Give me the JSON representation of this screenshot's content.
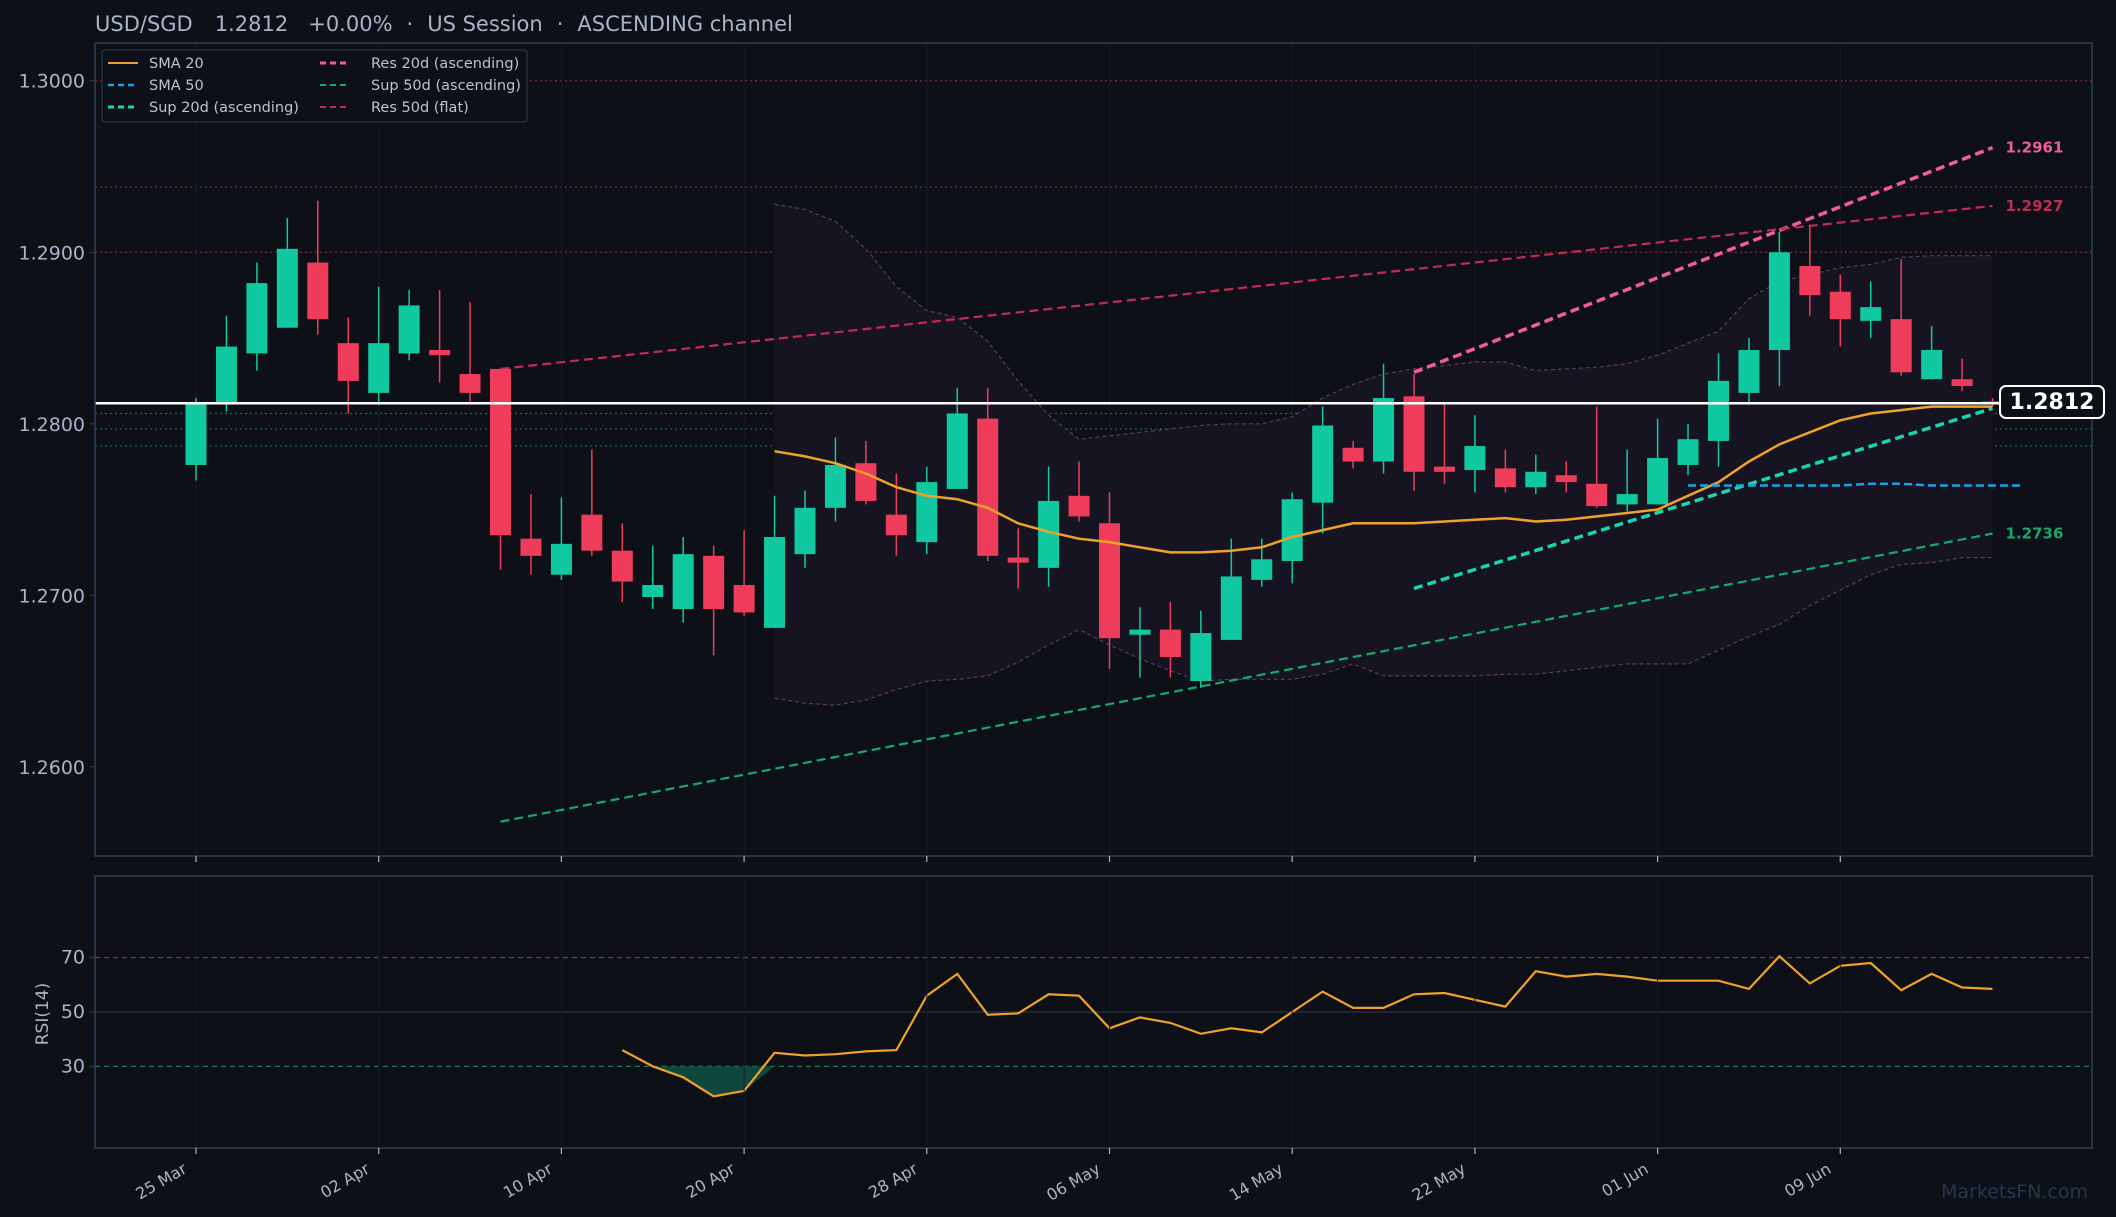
{
  "header": {
    "symbol": "USD/SGD",
    "price": "1.2812",
    "change": "+0.00%",
    "session": "US Session",
    "channel": "ASCENDING channel",
    "separator": "·"
  },
  "watermark": "MarketsFN.com",
  "colors": {
    "background": "#0d1017",
    "panel_border": "#2b4157",
    "up": "#11c9a0",
    "down": "#ee3c5a",
    "sma20": "#f0a12c",
    "sma50": "#1aa3e8",
    "sup20": "#19d6aa",
    "res20": "#ef5d9b",
    "sup50": "#17a96b",
    "res50": "#c42a52",
    "bollinger": "#5b3a5f",
    "rsi": "#f0a12c"
  },
  "chart_data": [
    {
      "type": "candlestick",
      "title": "USD/SGD",
      "x_tick_labels": [
        "25 Mar",
        "02 Apr",
        "10 Apr",
        "20 Apr",
        "28 Apr",
        "06 May",
        "14 May",
        "22 May",
        "01 Jun",
        "09 Jun"
      ],
      "y_ticks": [
        "1.2600",
        "1.2700",
        "1.2800",
        "1.2900",
        "1.3000"
      ],
      "ylim": [
        1.2548,
        1.3022
      ],
      "current_price_label": "1.2812",
      "current_price": 1.2812,
      "grid": true,
      "legend_position": "top-left",
      "legend": [
        "SMA 20",
        "SMA 50",
        "Sup 20d (ascending)",
        "Res 20d (ascending)",
        "Sup 50d (ascending)",
        "Res 50d (flat)"
      ],
      "candles": [
        {
          "o": 1.2776,
          "h": 1.2815,
          "l": 1.2767,
          "c": 1.2812
        },
        {
          "o": 1.2812,
          "h": 1.2863,
          "l": 1.2807,
          "c": 1.2845
        },
        {
          "o": 1.2841,
          "h": 1.2894,
          "l": 1.2831,
          "c": 1.2882
        },
        {
          "o": 1.2856,
          "h": 1.292,
          "l": 1.2856,
          "c": 1.2902
        },
        {
          "o": 1.2894,
          "h": 1.293,
          "l": 1.2852,
          "c": 1.2861
        },
        {
          "o": 1.2847,
          "h": 1.2862,
          "l": 1.2806,
          "c": 1.2825
        },
        {
          "o": 1.2818,
          "h": 1.288,
          "l": 1.2811,
          "c": 1.2847
        },
        {
          "o": 1.2841,
          "h": 1.2878,
          "l": 1.2837,
          "c": 1.2869
        },
        {
          "o": 1.2843,
          "h": 1.2878,
          "l": 1.2824,
          "c": 1.284
        },
        {
          "o": 1.2829,
          "h": 1.2871,
          "l": 1.2813,
          "c": 1.2818
        },
        {
          "o": 1.2832,
          "h": 1.2832,
          "l": 1.2715,
          "c": 1.2735
        },
        {
          "o": 1.2733,
          "h": 1.2759,
          "l": 1.2712,
          "c": 1.2723
        },
        {
          "o": 1.2712,
          "h": 1.2757,
          "l": 1.2709,
          "c": 1.273
        },
        {
          "o": 1.2747,
          "h": 1.2785,
          "l": 1.2723,
          "c": 1.2726
        },
        {
          "o": 1.2726,
          "h": 1.2742,
          "l": 1.2696,
          "c": 1.2708
        },
        {
          "o": 1.2699,
          "h": 1.2729,
          "l": 1.2692,
          "c": 1.2706
        },
        {
          "o": 1.2692,
          "h": 1.2734,
          "l": 1.2684,
          "c": 1.2724
        },
        {
          "o": 1.2723,
          "h": 1.2729,
          "l": 1.2665,
          "c": 1.2692
        },
        {
          "o": 1.2706,
          "h": 1.2738,
          "l": 1.2688,
          "c": 1.269
        },
        {
          "o": 1.2681,
          "h": 1.2758,
          "l": 1.2681,
          "c": 1.2734
        },
        {
          "o": 1.2724,
          "h": 1.2761,
          "l": 1.2716,
          "c": 1.2751
        },
        {
          "o": 1.2751,
          "h": 1.2792,
          "l": 1.2743,
          "c": 1.2776
        },
        {
          "o": 1.2777,
          "h": 1.279,
          "l": 1.2753,
          "c": 1.2755
        },
        {
          "o": 1.2747,
          "h": 1.2771,
          "l": 1.2723,
          "c": 1.2735
        },
        {
          "o": 1.2731,
          "h": 1.2775,
          "l": 1.2724,
          "c": 1.2766
        },
        {
          "o": 1.2762,
          "h": 1.2821,
          "l": 1.2762,
          "c": 1.2806
        },
        {
          "o": 1.2803,
          "h": 1.2821,
          "l": 1.272,
          "c": 1.2723
        },
        {
          "o": 1.2722,
          "h": 1.2739,
          "l": 1.2704,
          "c": 1.2719
        },
        {
          "o": 1.2716,
          "h": 1.2775,
          "l": 1.2705,
          "c": 1.2755
        },
        {
          "o": 1.2758,
          "h": 1.2778,
          "l": 1.2743,
          "c": 1.2746
        },
        {
          "o": 1.2742,
          "h": 1.276,
          "l": 1.2657,
          "c": 1.2675
        },
        {
          "o": 1.2677,
          "h": 1.2693,
          "l": 1.2652,
          "c": 1.268
        },
        {
          "o": 1.268,
          "h": 1.2696,
          "l": 1.2652,
          "c": 1.2664
        },
        {
          "o": 1.265,
          "h": 1.2691,
          "l": 1.2646,
          "c": 1.2678
        },
        {
          "o": 1.2674,
          "h": 1.2733,
          "l": 1.2674,
          "c": 1.2711
        },
        {
          "o": 1.2709,
          "h": 1.2733,
          "l": 1.2705,
          "c": 1.2721
        },
        {
          "o": 1.272,
          "h": 1.276,
          "l": 1.2707,
          "c": 1.2756
        },
        {
          "o": 1.2754,
          "h": 1.281,
          "l": 1.2736,
          "c": 1.2799
        },
        {
          "o": 1.2786,
          "h": 1.279,
          "l": 1.2774,
          "c": 1.2778
        },
        {
          "o": 1.2778,
          "h": 1.2835,
          "l": 1.2771,
          "c": 1.2815
        },
        {
          "o": 1.2816,
          "h": 1.2829,
          "l": 1.2761,
          "c": 1.2772
        },
        {
          "o": 1.2775,
          "h": 1.2812,
          "l": 1.2765,
          "c": 1.2772
        },
        {
          "o": 1.2773,
          "h": 1.2805,
          "l": 1.276,
          "c": 1.2787
        },
        {
          "o": 1.2774,
          "h": 1.2785,
          "l": 1.276,
          "c": 1.2763
        },
        {
          "o": 1.2763,
          "h": 1.2782,
          "l": 1.2759,
          "c": 1.2772
        },
        {
          "o": 1.277,
          "h": 1.2778,
          "l": 1.276,
          "c": 1.2766
        },
        {
          "o": 1.2765,
          "h": 1.281,
          "l": 1.2751,
          "c": 1.2752
        },
        {
          "o": 1.2753,
          "h": 1.2785,
          "l": 1.2749,
          "c": 1.2759
        },
        {
          "o": 1.2753,
          "h": 1.2803,
          "l": 1.2753,
          "c": 1.278
        },
        {
          "o": 1.2776,
          "h": 1.28,
          "l": 1.277,
          "c": 1.2791
        },
        {
          "o": 1.279,
          "h": 1.2841,
          "l": 1.2775,
          "c": 1.2825
        },
        {
          "o": 1.2818,
          "h": 1.285,
          "l": 1.2812,
          "c": 1.2843
        },
        {
          "o": 1.2843,
          "h": 1.2912,
          "l": 1.2822,
          "c": 1.29
        },
        {
          "o": 1.2892,
          "h": 1.2916,
          "l": 1.2863,
          "c": 1.2875
        },
        {
          "o": 1.2877,
          "h": 1.2887,
          "l": 1.2845,
          "c": 1.2861
        },
        {
          "o": 1.286,
          "h": 1.2883,
          "l": 1.285,
          "c": 1.2868
        },
        {
          "o": 1.2861,
          "h": 1.2896,
          "l": 1.2828,
          "c": 1.283
        },
        {
          "o": 1.2826,
          "h": 1.2857,
          "l": 1.2826,
          "c": 1.2843
        },
        {
          "o": 1.2826,
          "h": 1.2838,
          "l": 1.2819,
          "c": 1.2822
        },
        {
          "o": 1.2813,
          "h": 1.2815,
          "l": 1.281,
          "c": 1.2812
        }
      ],
      "sma20_start_index": 19,
      "sma20": [
        1.2784,
        1.2781,
        1.2777,
        1.2771,
        1.2763,
        1.2758,
        1.2756,
        1.2751,
        1.2742,
        1.2737,
        1.2733,
        1.2731,
        1.2728,
        1.2725,
        1.2725,
        1.2726,
        1.2728,
        1.2734,
        1.2738,
        1.2742,
        1.2742,
        1.2742,
        1.2743,
        1.2744,
        1.2745,
        1.2743,
        1.2744,
        1.2746,
        1.2748,
        1.275,
        1.2758,
        1.2766,
        1.2778,
        1.2788,
        1.2795,
        1.2802,
        1.2806,
        1.2808,
        1.281,
        1.281,
        1.281
      ],
      "sma50_start_index": 49,
      "sma50": [
        1.2764,
        1.2764,
        1.2764,
        1.2764,
        1.2764,
        1.2764,
        1.2765,
        1.2765,
        1.2764,
        1.2764,
        1.2764,
        1.2764
      ],
      "bollinger_start_index": 19,
      "bollinger_upper": [
        1.2928,
        1.2925,
        1.2918,
        1.2902,
        1.288,
        1.2866,
        1.2862,
        1.2848,
        1.2825,
        1.2805,
        1.2791,
        1.2793,
        1.2795,
        1.2797,
        1.2799,
        1.28,
        1.28,
        1.2804,
        1.2815,
        1.2823,
        1.2829,
        1.2832,
        1.2834,
        1.2836,
        1.2836,
        1.2831,
        1.2832,
        1.2833,
        1.2835,
        1.284,
        1.2847,
        1.2854,
        1.2873,
        1.2883,
        1.2887,
        1.2891,
        1.2893,
        1.2897,
        1.2898,
        1.2898,
        1.2898
      ],
      "bollinger_lower": [
        1.264,
        1.2637,
        1.2636,
        1.2639,
        1.2645,
        1.265,
        1.2651,
        1.2653,
        1.2661,
        1.2671,
        1.268,
        1.2671,
        1.2663,
        1.2656,
        1.265,
        1.2651,
        1.2651,
        1.2651,
        1.2654,
        1.266,
        1.2653,
        1.2653,
        1.2653,
        1.2653,
        1.2654,
        1.2654,
        1.2656,
        1.2658,
        1.266,
        1.266,
        1.266,
        1.2668,
        1.2676,
        1.2683,
        1.2694,
        1.2703,
        1.2712,
        1.2718,
        1.2719,
        1.2722,
        1.2722
      ],
      "trendlines": [
        {
          "name": "Res 20d (ascending)",
          "start_index": 40,
          "end_index": 59,
          "y_start": 1.283,
          "y_end": 1.2961,
          "label": "1.2961"
        },
        {
          "name": "Sup 20d (ascending)",
          "start_index": 40,
          "end_index": 59,
          "y_start": 1.2704,
          "y_end": 1.2809,
          "label": ""
        },
        {
          "name": "Sup 50d (ascending)",
          "start_index": 10,
          "end_index": 59,
          "y_start": 1.2568,
          "y_end": 1.2736,
          "label": "1.2736"
        },
        {
          "name": "Res 50d (flat)",
          "start_index": 10,
          "end_index": 59,
          "y_start": 1.2832,
          "y_end": 1.2927,
          "label": "1.2927"
        }
      ],
      "horizontal_levels": [
        1.3,
        1.2938,
        1.29,
        1.2806,
        1.2797,
        1.2787
      ]
    },
    {
      "type": "line",
      "ylabel": "RSI(14)",
      "y_ticks": [
        "30",
        "50",
        "70"
      ],
      "ylim": [
        0,
        100
      ],
      "reference_levels": [
        70,
        50,
        30
      ],
      "start_index": 14,
      "rsi": [
        36,
        30,
        26,
        19,
        21,
        35,
        34,
        34.5,
        35.5,
        36,
        56,
        64,
        49,
        49.5,
        56.5,
        56,
        44,
        48,
        46,
        42,
        44,
        42.5,
        50,
        57.5,
        51.5,
        51.5,
        56.5,
        57,
        54.5,
        52,
        65,
        63,
        64,
        63,
        61.5,
        61.5,
        61.5,
        58.5,
        70.5,
        60.5,
        67,
        68,
        58,
        64,
        59,
        58.5
      ]
    }
  ]
}
